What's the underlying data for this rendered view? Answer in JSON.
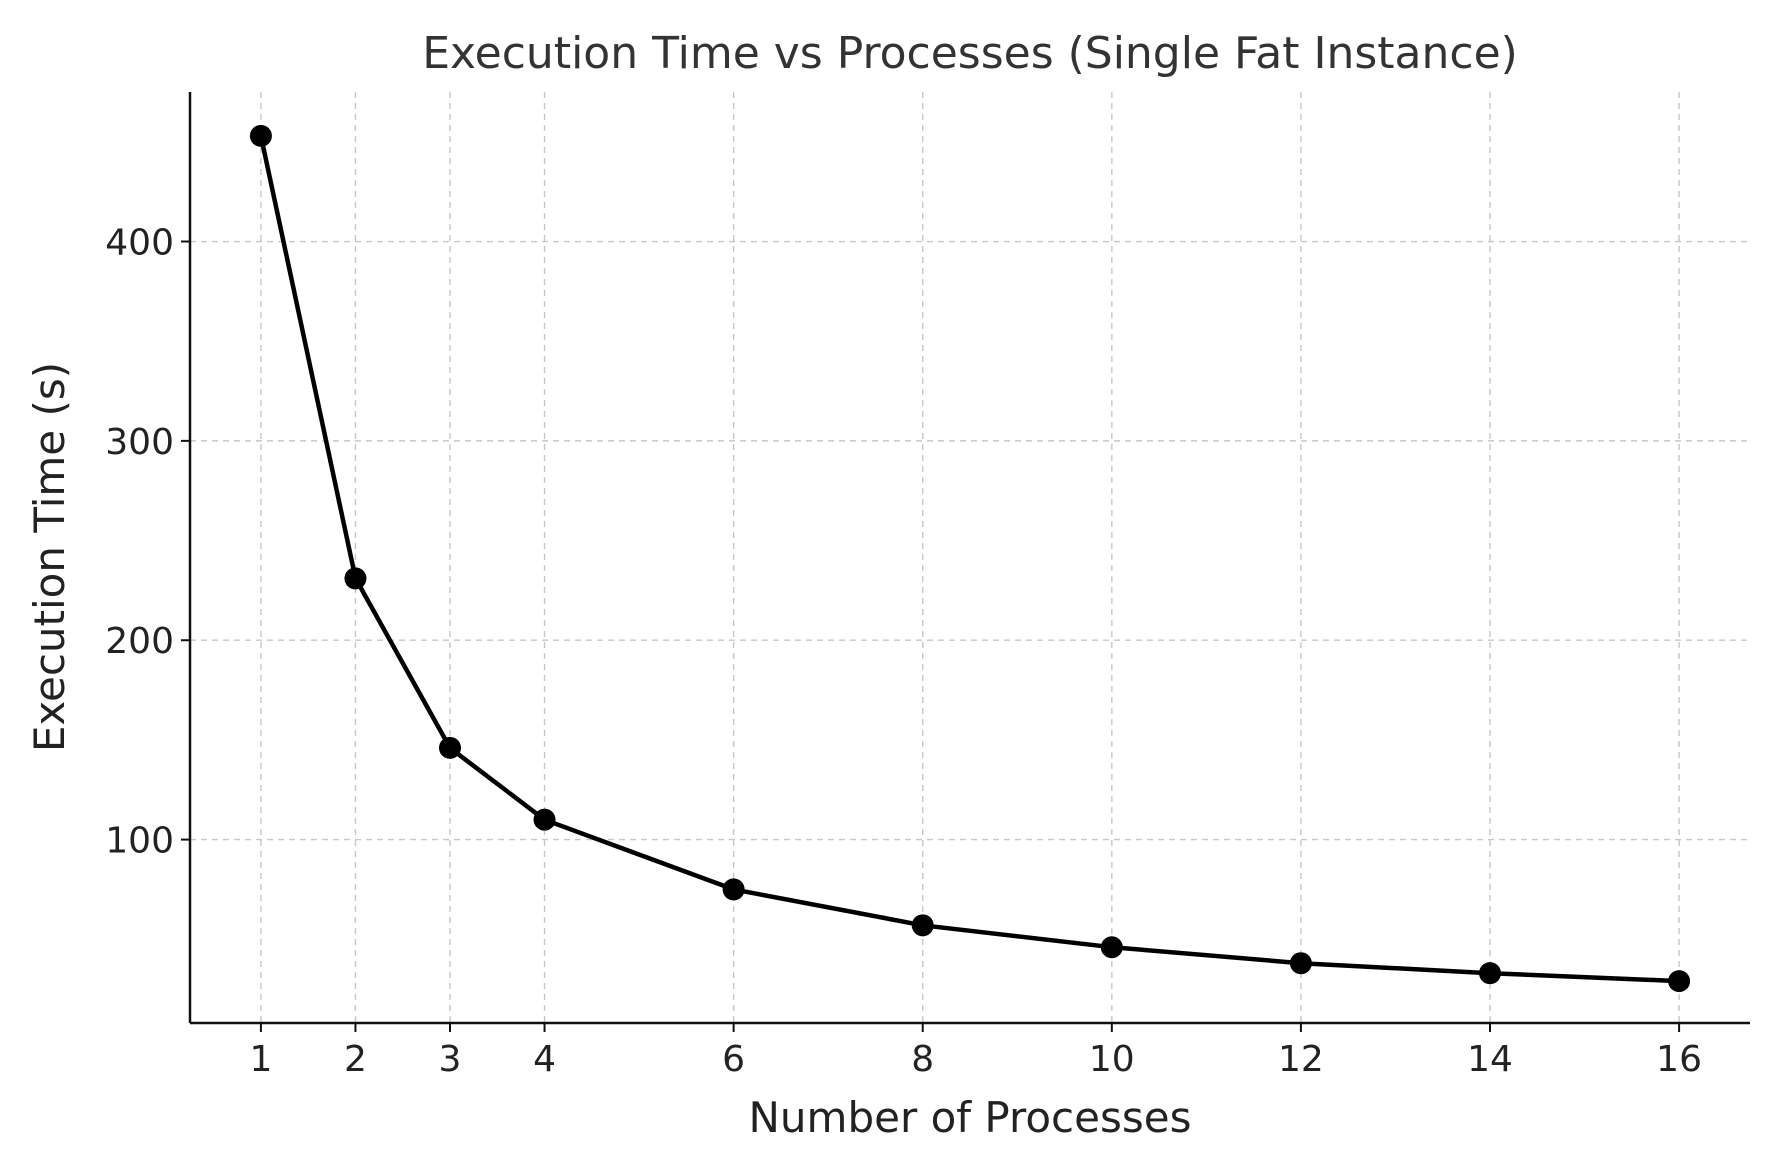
{
  "chart_data": {
    "type": "line",
    "title": "Execution Time vs Processes (Single Fat Instance)",
    "xlabel": "Number of Processes",
    "ylabel": "Execution Time (s)",
    "x": [
      1,
      2,
      3,
      4,
      6,
      8,
      10,
      12,
      14,
      16
    ],
    "series": [
      {
        "values": [
          453,
          231,
          146,
          110,
          75,
          57,
          46,
          38,
          33,
          29
        ],
        "color": "#000000",
        "marker": "circle"
      }
    ],
    "xticks": [
      1,
      2,
      3,
      4,
      6,
      8,
      10,
      12,
      14,
      16
    ],
    "yticks": [
      100,
      200,
      300,
      400
    ],
    "xlim": [
      0.25,
      16.75
    ],
    "ylim": [
      8,
      475
    ],
    "grid": true,
    "grid_style": "dashed",
    "axis_spines": "left-bottom"
  }
}
